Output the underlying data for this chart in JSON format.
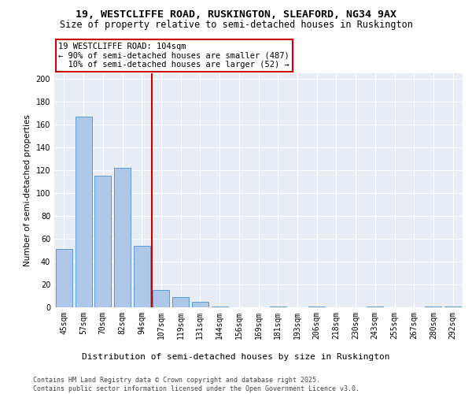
{
  "title1": "19, WESTCLIFFE ROAD, RUSKINGTON, SLEAFORD, NG34 9AX",
  "title2": "Size of property relative to semi-detached houses in Ruskington",
  "xlabel": "Distribution of semi-detached houses by size in Ruskington",
  "ylabel": "Number of semi-detached properties",
  "categories": [
    "45sqm",
    "57sqm",
    "70sqm",
    "82sqm",
    "94sqm",
    "107sqm",
    "119sqm",
    "131sqm",
    "144sqm",
    "156sqm",
    "169sqm",
    "181sqm",
    "193sqm",
    "206sqm",
    "218sqm",
    "230sqm",
    "243sqm",
    "255sqm",
    "267sqm",
    "280sqm",
    "292sqm"
  ],
  "values": [
    51,
    167,
    115,
    122,
    54,
    15,
    9,
    5,
    1,
    0,
    0,
    1,
    0,
    1,
    0,
    0,
    1,
    0,
    0,
    1,
    1
  ],
  "bar_color": "#aec6e8",
  "bar_edge_color": "#5b9bd5",
  "vline_color": "#cc0000",
  "annotation_text": "19 WESTCLIFFE ROAD: 104sqm\n← 90% of semi-detached houses are smaller (487)\n  10% of semi-detached houses are larger (52) →",
  "annotation_box_color": "#cc0000",
  "ylim": [
    0,
    205
  ],
  "yticks": [
    0,
    20,
    40,
    60,
    80,
    100,
    120,
    140,
    160,
    180,
    200
  ],
  "bg_color": "#e8edf5",
  "footer_text": "Contains HM Land Registry data © Crown copyright and database right 2025.\nContains public sector information licensed under the Open Government Licence v3.0.",
  "title1_fontsize": 9.5,
  "title2_fontsize": 8.5,
  "xlabel_fontsize": 8,
  "ylabel_fontsize": 7.5,
  "tick_fontsize": 7,
  "annotation_fontsize": 7.5,
  "footer_fontsize": 6
}
